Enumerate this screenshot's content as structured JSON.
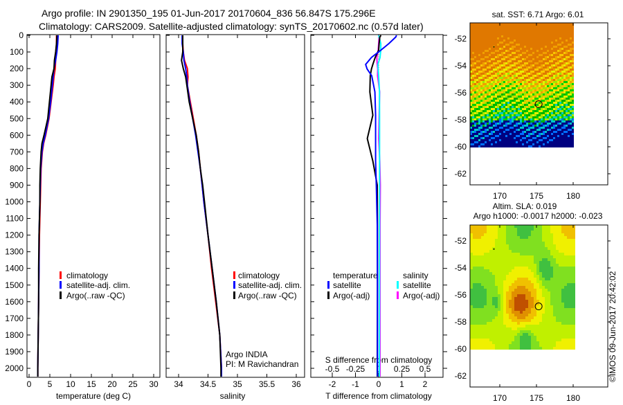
{
  "title_line1": "Argo profile: IN 2901350_195 01-Jun-2017 20170604_836 56.847S 175.296E",
  "title_line2": "Climatology: CARS2009. Satellite-adjusted climatology: synTS_20170602.nc (0.57d later)",
  "colors": {
    "climatology": "#ff0000",
    "satellite": "#0000ff",
    "argo": "#000000",
    "sal_satellite": "#00ffff",
    "sal_argo": "#ff00ff"
  },
  "chart_data": [
    {
      "type": "line",
      "xlabel": "temperature (deg C)",
      "xlim": [
        -1,
        31
      ],
      "xticks": [
        0,
        5,
        10,
        15,
        20,
        25,
        30
      ],
      "ylim": [
        0,
        2050
      ],
      "yticks": [
        0,
        100,
        200,
        300,
        400,
        500,
        600,
        700,
        800,
        900,
        1000,
        1100,
        1200,
        1300,
        1400,
        1500,
        1600,
        1700,
        1800,
        1900,
        2000
      ],
      "legend": [
        "climatology",
        "satellite-adj. clim.",
        "Argo(..raw -QC)"
      ],
      "legend_position": "lower-middle",
      "depth": [
        0,
        50,
        100,
        150,
        200,
        250,
        300,
        400,
        500,
        600,
        650,
        700,
        800,
        900,
        1000,
        1200,
        1400,
        1600,
        1800,
        2000,
        2050
      ],
      "series": [
        {
          "name": "climatology",
          "values": [
            6.6,
            6.6,
            6.5,
            6.4,
            6.3,
            6.0,
            5.8,
            5.3,
            4.8,
            4.0,
            3.5,
            3.2,
            2.9,
            2.8,
            2.7,
            2.5,
            2.4,
            2.3,
            2.2,
            2.1,
            2.1
          ]
        },
        {
          "name": "satellite-adj. clim.",
          "values": [
            7.0,
            6.9,
            6.7,
            6.4,
            6.0,
            5.8,
            5.6,
            5.2,
            4.7,
            3.9,
            3.4,
            3.1,
            2.8,
            2.7,
            2.6,
            2.4,
            2.4,
            2.3,
            2.2,
            2.1,
            2.1
          ]
        },
        {
          "name": "Argo(..raw -QC)",
          "values": [
            6.7,
            6.6,
            6.4,
            6.1,
            6.0,
            5.5,
            5.3,
            4.9,
            4.5,
            3.6,
            3.1,
            2.9,
            2.7,
            2.6,
            2.6,
            2.4,
            2.3,
            2.3,
            2.2,
            2.1,
            2.1
          ]
        }
      ]
    },
    {
      "type": "line",
      "xlabel": "salinity",
      "xlim": [
        33.8,
        36.1
      ],
      "xticks": [
        "34",
        "34.5",
        "35",
        "35.5",
        "36"
      ],
      "legend": [
        "climatology",
        "satellite-adj. clim.",
        "Argo(..raw -QC)"
      ],
      "annotation": [
        "Argo INDIA",
        "PI: M Ravichandran"
      ],
      "depth": [
        0,
        50,
        100,
        150,
        200,
        250,
        300,
        400,
        500,
        600,
        700,
        800,
        900,
        1000,
        1200,
        1400,
        1600,
        1800,
        2000,
        2050
      ],
      "series": [
        {
          "name": "climatology",
          "values": [
            34.07,
            34.07,
            34.08,
            34.1,
            34.15,
            34.16,
            34.15,
            34.2,
            34.25,
            34.3,
            34.34,
            34.37,
            34.4,
            34.43,
            34.5,
            34.56,
            34.63,
            34.7,
            34.73,
            34.73
          ]
        },
        {
          "name": "satellite-adj. clim.",
          "values": [
            34.06,
            34.06,
            34.08,
            34.09,
            34.12,
            34.14,
            34.15,
            34.19,
            34.24,
            34.29,
            34.33,
            34.37,
            34.4,
            34.43,
            34.5,
            34.57,
            34.64,
            34.7,
            34.73,
            34.73
          ]
        },
        {
          "name": "Argo(..raw -QC)",
          "values": [
            34.07,
            34.07,
            34.07,
            34.05,
            34.08,
            34.12,
            34.14,
            34.18,
            34.24,
            34.3,
            34.34,
            34.37,
            34.41,
            34.44,
            34.5,
            34.57,
            34.64,
            34.7,
            34.72,
            34.72
          ]
        }
      ]
    },
    {
      "type": "line",
      "xlabel": "T difference from climatology",
      "xlabel2": "S difference from climatology",
      "xlim": [
        -2.8,
        2.8
      ],
      "xticks": [
        "-2",
        "-1",
        "0",
        "1",
        "2"
      ],
      "xlim2": [
        -0.7,
        0.7
      ],
      "xticks2": [
        "-0.5",
        "-0.25",
        "0",
        "0.25",
        "0.5"
      ],
      "legend_titles": [
        "temperature",
        "salinity"
      ],
      "legend": [
        "satellite",
        "Argo(-adj)",
        "satellite",
        "Argo(-adj)"
      ],
      "depth": [
        0,
        10,
        50,
        90,
        133,
        175,
        202,
        243,
        340,
        480,
        620,
        755,
        900,
        1140,
        1500,
        2000,
        2050
      ],
      "series": [
        {
          "name": "T satellite",
          "axis": "T",
          "values": [
            0.77,
            0.74,
            0.44,
            0.09,
            -0.31,
            -0.56,
            -0.5,
            -0.3,
            -0.16,
            -0.13,
            -0.13,
            -0.13,
            -0.1,
            -0.06,
            -0.05,
            -0.05,
            -0.05
          ]
        },
        {
          "name": "T Argo(-adj)",
          "axis": "T",
          "values": [
            0.1,
            0.05,
            0.02,
            0.0,
            -0.15,
            -0.25,
            -0.31,
            -0.36,
            -0.38,
            -0.25,
            -0.49,
            -0.25,
            -0.06,
            -0.05,
            -0.05,
            -0.06,
            -0.06
          ]
        },
        {
          "name": "S satellite",
          "axis": "S",
          "values": [
            0.0,
            0.005,
            0.023,
            0.023,
            0.015,
            -0.008,
            -0.005,
            0.0,
            0.009,
            0.01,
            0.01,
            0.01,
            0.01,
            0.01,
            0.01,
            0.008,
            0.008
          ]
        },
        {
          "name": "S Argo(-adj)",
          "axis": "S",
          "values": [
            0.0,
            0.005,
            0.0,
            -0.005,
            -0.02,
            -0.015,
            -0.01,
            -0.012,
            0.011,
            0.005,
            0.0,
            0.012,
            0.018,
            0.015,
            0.015,
            0.015,
            0.015
          ]
        }
      ]
    },
    {
      "type": "heatmap",
      "title": "sat. SST: 6.71  Argo: 6.01",
      "xticks": [
        "170",
        "175",
        "180"
      ],
      "yticks": [
        "-52",
        "-54",
        "-56",
        "-58",
        "-60",
        "-62"
      ],
      "xlim": [
        166.5,
        184.5
      ],
      "ylim": [
        -63,
        -51
      ],
      "argo_position": [
        175.296,
        -56.847
      ]
    },
    {
      "type": "heatmap",
      "title": "Altim. SLA: 0.019",
      "subtitle": "Argo h1000: -0.0017 h2000: -0.023",
      "xticks": [
        "170",
        "175",
        "180"
      ],
      "yticks": [
        "-52",
        "-54",
        "-56",
        "-58",
        "-60",
        "-62"
      ],
      "xlim": [
        166.5,
        184.5
      ],
      "ylim": [
        -63,
        -51
      ],
      "argo_position": [
        175.296,
        -56.847
      ]
    }
  ],
  "credit": "©IMOS 09-Jun-2017 20:42:02"
}
